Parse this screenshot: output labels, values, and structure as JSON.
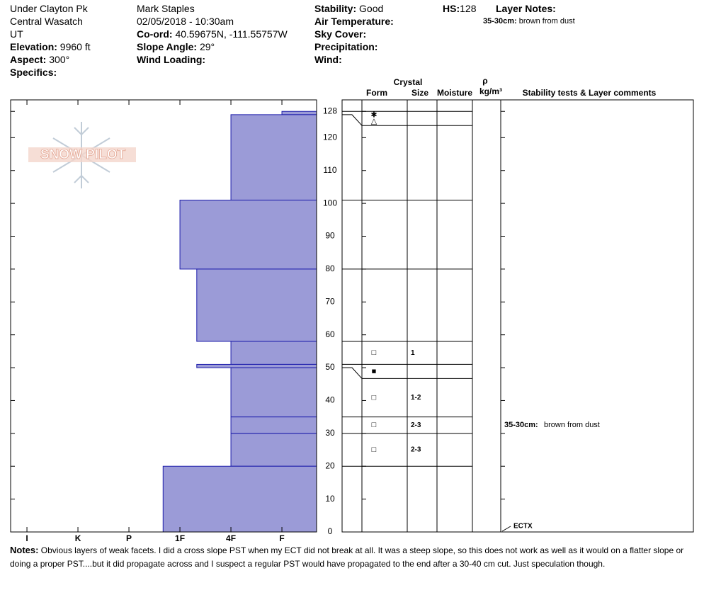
{
  "header": {
    "location": "Under Clayton Pk",
    "range": "Central Wasatch",
    "state": "UT",
    "elevation": {
      "label": "Elevation:",
      "value": "9960 ft"
    },
    "aspect": {
      "label": "Aspect:",
      "value": "300°"
    },
    "specifics": {
      "label": "Specifics:"
    },
    "observer": "Mark Staples",
    "datetime": "02/05/2018 - 10:30am",
    "coord": {
      "label": "Co-ord:",
      "value": "40.59675N, -111.55757W"
    },
    "slope_angle": {
      "label": "Slope Angle:",
      "value": "29°"
    },
    "wind_loading": {
      "label": "Wind Loading:"
    },
    "stability": {
      "label": "Stability:",
      "value": "Good"
    },
    "air_temperature": {
      "label": "Air Temperature:"
    },
    "sky_cover": {
      "label": "Sky Cover:"
    },
    "precipitation": {
      "label": "Precipitation:"
    },
    "wind": {
      "label": "Wind:"
    },
    "hs": {
      "label": "HS:",
      "value": "128"
    },
    "layer_notes": {
      "label": "Layer Notes:",
      "items": [
        {
          "label": "35-30cm:",
          "value": "brown from dust"
        }
      ]
    }
  },
  "chart_data": {
    "type": "snow-profile",
    "logo_text": "SNOW PILOT",
    "columns": {
      "crystal": "Crystal",
      "form": "Form",
      "size": "Size",
      "moisture": "Moisture",
      "density_symbol": "ρ",
      "density_unit": "kg/m³",
      "comments": "Stability tests & Layer comments"
    },
    "ylim": [
      0,
      131.5
    ],
    "yticks": [
      0,
      10,
      20,
      30,
      40,
      50,
      60,
      70,
      80,
      90,
      100,
      110,
      120,
      128
    ],
    "xlim": [
      6.32,
      0.32
    ],
    "xticks": [
      {
        "value": 6,
        "label": "I"
      },
      {
        "value": 5,
        "label": "K"
      },
      {
        "value": 4,
        "label": "P"
      },
      {
        "value": 3,
        "label": "1F"
      },
      {
        "value": 2,
        "label": "4F"
      },
      {
        "value": 1,
        "label": "F"
      }
    ],
    "color": "#9b9bd7",
    "layers": [
      {
        "top": 128,
        "bottom": 127,
        "hardness": 1,
        "form": [
          "✱",
          "△"
        ]
      },
      {
        "top": 127,
        "bottom": 101,
        "hardness": 2
      },
      {
        "top": 101,
        "bottom": 80,
        "hardness": 3
      },
      {
        "top": 80,
        "bottom": 58,
        "hardness": 2.67
      },
      {
        "top": 58,
        "bottom": 51,
        "hardness": 2,
        "form": [
          "□"
        ],
        "size": "1"
      },
      {
        "top": 51,
        "bottom": 50,
        "hardness": 2.67,
        "form": [
          "■"
        ]
      },
      {
        "top": 50,
        "bottom": 35,
        "hardness": 2,
        "form": [
          "□"
        ],
        "size": "1-2"
      },
      {
        "top": 35,
        "bottom": 30,
        "hardness": 2,
        "form": [
          "□"
        ],
        "size": "2-3",
        "comment": {
          "label": "35-30cm:",
          "text": "brown from dust"
        }
      },
      {
        "top": 30,
        "bottom": 20,
        "hardness": 2,
        "form": [
          "□"
        ],
        "size": "2-3"
      },
      {
        "top": 20,
        "bottom": 0,
        "hardness": 3.33
      }
    ],
    "stability_tests": [
      {
        "result": "ECTX",
        "depth": 0
      }
    ],
    "notes": {
      "label": "Notes:",
      "text": "Obvious layers of weak facets.  I did a cross slope PST when my ECT did not break at all. It was a steep slope, so this does not work as well as it would on a flatter slope or doing a proper PST....but it did propagate across and I suspect a regular PST would have propagated to the end after a 30-40 cm cut. Just speculation though."
    }
  }
}
